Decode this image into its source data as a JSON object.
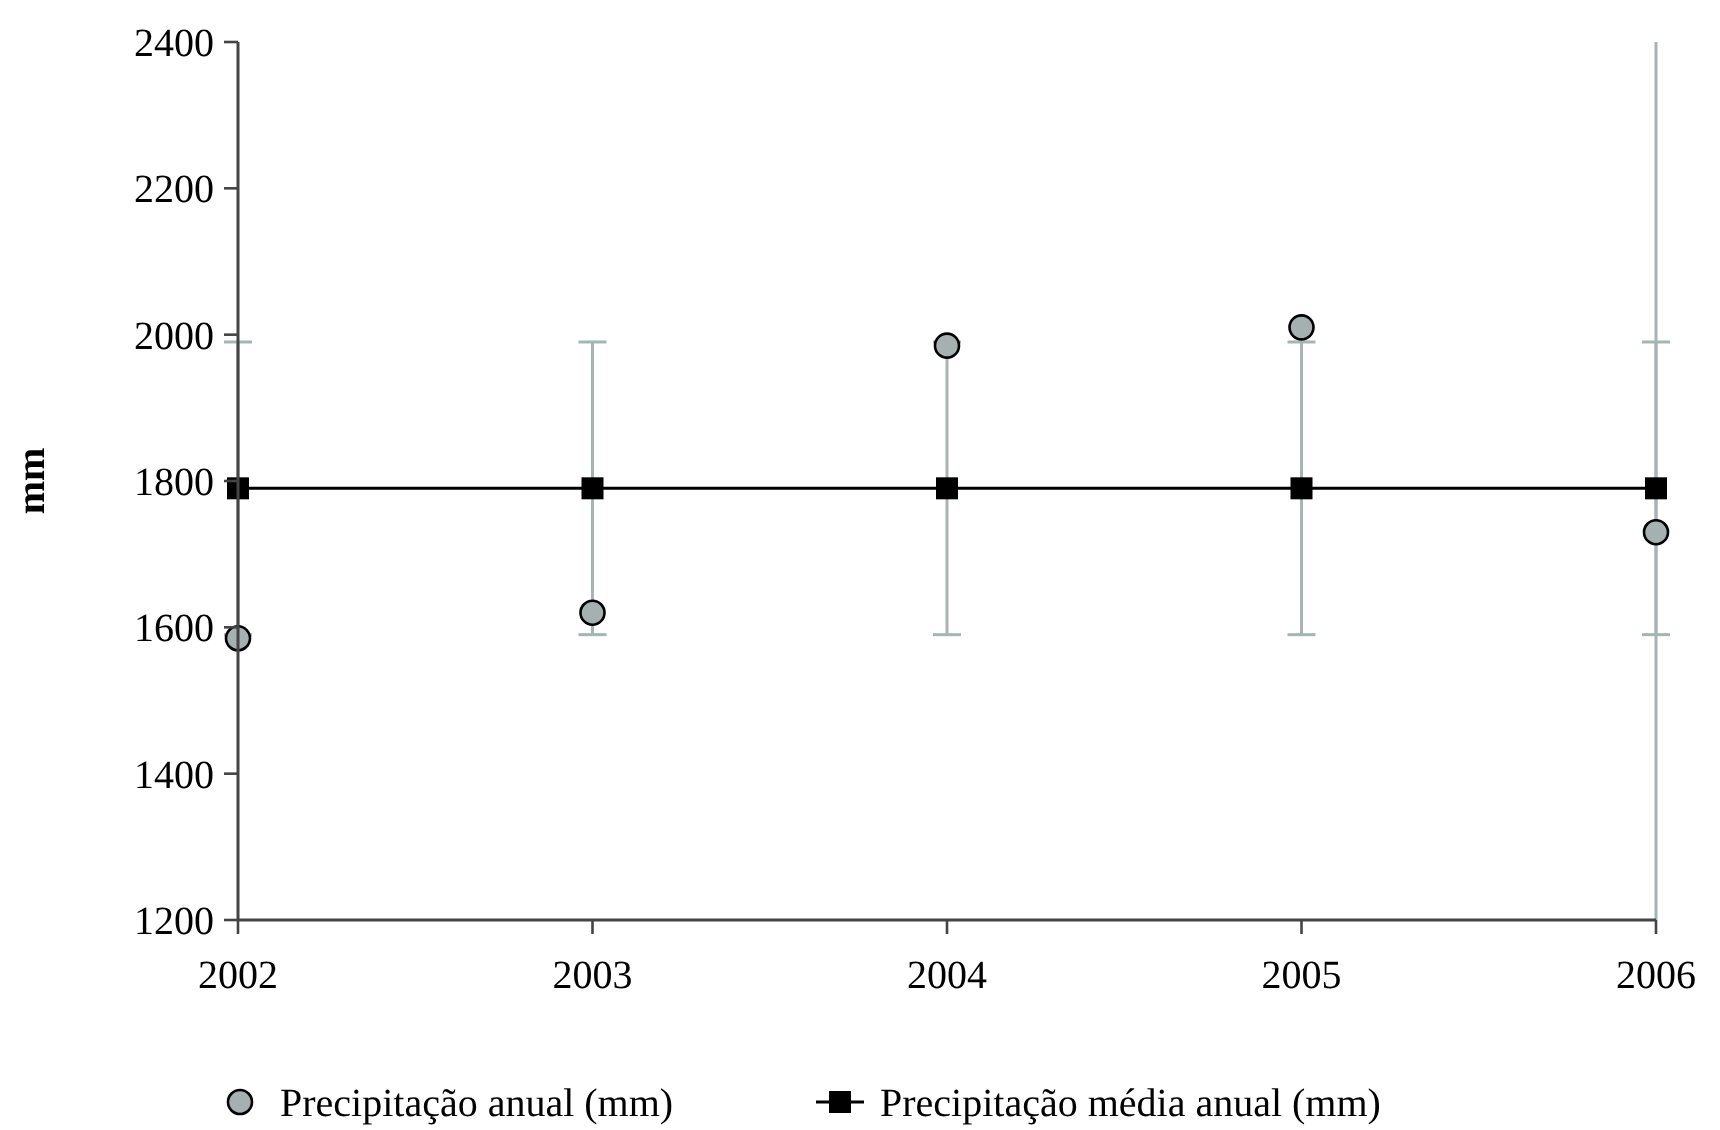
{
  "chart_data": {
    "type": "scatter",
    "ylabel": "mm",
    "x": [
      2002,
      2003,
      2004,
      2005,
      2006
    ],
    "xlim": [
      2002,
      2006
    ],
    "xticks": [
      2002,
      2003,
      2004,
      2005,
      2006
    ],
    "ylim": [
      1200,
      2400
    ],
    "yticks": [
      1200,
      1400,
      1600,
      1800,
      2000,
      2200,
      2400
    ],
    "grid": false,
    "legend": "bottom",
    "series": [
      {
        "name": "Precipitação anual (mm)",
        "marker": "circle",
        "color": "#a5b1b1",
        "values": [
          1585,
          1620,
          1985,
          2010,
          1730
        ]
      },
      {
        "name": "Precipitação média anual (mm)",
        "type": "line",
        "marker": "square",
        "line_style": "solid",
        "color": "#000000",
        "values": [
          1790,
          1790,
          1790,
          1790,
          1790
        ],
        "errors": [
          200,
          200,
          200,
          200,
          200
        ]
      }
    ]
  }
}
